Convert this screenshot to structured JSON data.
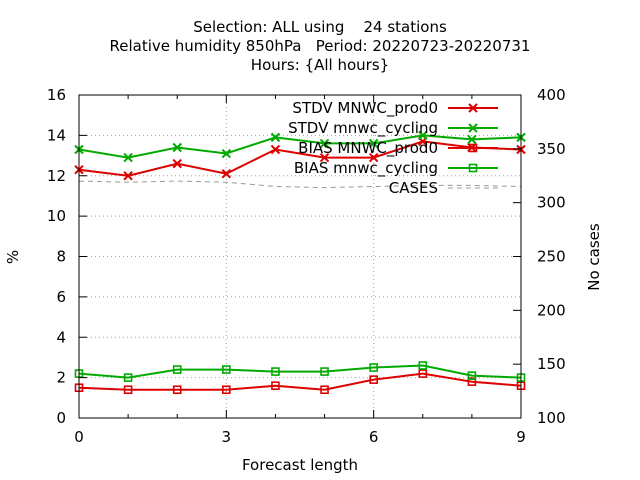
{
  "chart_data": {
    "type": "line",
    "title_lines": [
      "Selection: ALL using    24 stations",
      "Relative humidity 850hPa   Period: 20220723-20220731",
      "Hours: {All hours}"
    ],
    "xlabel": "Forecast length",
    "ylabel": "%",
    "y2label": "No cases",
    "x": [
      0,
      1,
      2,
      3,
      4,
      5,
      6,
      7,
      8,
      9
    ],
    "xlim": [
      0,
      9
    ],
    "ylim": [
      0,
      16
    ],
    "y2lim": [
      100,
      400
    ],
    "x_ticks": [
      "0",
      "3",
      "6",
      "9"
    ],
    "y_ticks": [
      "0",
      "2",
      "4",
      "6",
      "8",
      "10",
      "12",
      "14",
      "16"
    ],
    "y2_ticks": [
      "100",
      "150",
      "200",
      "250",
      "300",
      "350",
      "400"
    ],
    "grid": true,
    "legend_position": "top-right",
    "series": [
      {
        "name": "STDV MNWC_prod0",
        "color": "#dd0000",
        "marker": "x",
        "axis": "left",
        "values": [
          12.3,
          12.0,
          12.6,
          12.1,
          13.3,
          12.9,
          12.9,
          13.7,
          13.4,
          13.3
        ]
      },
      {
        "name": "STDV mnwc_cycling",
        "color": "#00aa00",
        "marker": "x",
        "axis": "left",
        "values": [
          13.3,
          12.9,
          13.4,
          13.1,
          13.9,
          13.6,
          13.6,
          14.0,
          13.8,
          13.9
        ]
      },
      {
        "name": "BIAS MNWC_prod0",
        "color": "#dd0000",
        "marker": "square",
        "axis": "left",
        "values": [
          1.5,
          1.4,
          1.4,
          1.4,
          1.6,
          1.4,
          1.9,
          2.2,
          1.8,
          1.6
        ]
      },
      {
        "name": "BIAS mnwc_cycling",
        "color": "#00aa00",
        "marker": "square",
        "axis": "left",
        "values": [
          2.2,
          2.0,
          2.4,
          2.4,
          2.3,
          2.3,
          2.5,
          2.6,
          2.1,
          2.0
        ]
      },
      {
        "name": "CASES",
        "color": "#999999",
        "marker": "none",
        "dashed": true,
        "axis": "right",
        "values": [
          320,
          319,
          320,
          319,
          315,
          314,
          315,
          316,
          316,
          315
        ]
      }
    ]
  }
}
